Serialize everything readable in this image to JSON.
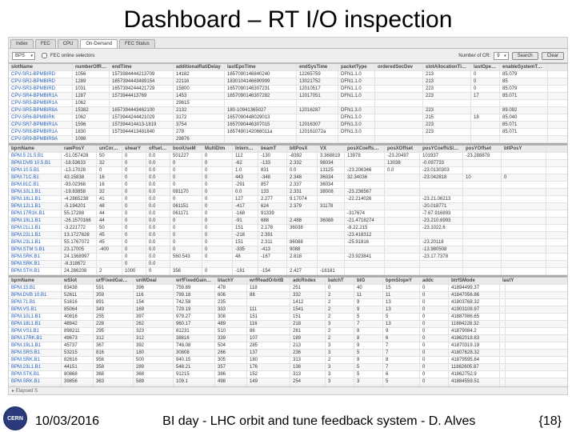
{
  "slide": {
    "title": "Dashboard – RT I/O inspection",
    "footer_date": "10/03/2016",
    "footer_text": "BI day - LHC orbit and tune feedback system - D. Alves",
    "footer_page": "{18}"
  },
  "tabs": [
    "Index",
    "FEC",
    "CPU",
    "On-Demand",
    "FEC Status"
  ],
  "active_tab": 3,
  "toolbar": {
    "dropdown": "BPS",
    "chk_label": "FEC online selectors",
    "counter_label": "Number of CR:",
    "counter_value": "9",
    "btn1": "Search",
    "btn2": "Clear"
  },
  "upper": {
    "cols": [
      "slotName",
      "numberOfReader",
      "endTime",
      "additionalRatiDelay",
      "lastEpoTime",
      "endSysTime",
      "packetType",
      "orderedSecDev",
      "slotAllocationTime",
      "lastOpenSourceFilters",
      "enableSystemToolkit"
    ],
    "rows": [
      [
        "CPV-SR1-BPMBIRD",
        "1056",
        "1573984444213709",
        "14182",
        "1657090146840240",
        "12265759",
        "DFN1.1.0",
        "",
        "213",
        "0",
        "85.079"
      ],
      [
        "CPV-SR2-BPMBIRD",
        "1289",
        "1657394443489154",
        "22116",
        "1830104146690999",
        "13021752",
        "DFN1.1.0",
        "",
        "213",
        "0",
        "85"
      ],
      [
        "CPV-SR3-BPMBIRD",
        "1031",
        "1657394244421729",
        "15800",
        "1657090146307231",
        "12010517",
        "DFN1.1.0",
        "",
        "223",
        "0",
        "85.079"
      ],
      [
        "CPV-SR4-BPMBIR1A",
        "1287",
        "1573944413769",
        "1453",
        "1657090146307282",
        "12017051",
        "DFN1.1.0",
        "",
        "223",
        "17",
        "85.071"
      ],
      [
        "CPV-SR5-BPMBIR1A",
        "1062",
        "",
        "29615",
        "",
        "",
        "",
        "",
        "",
        "",
        ""
      ],
      [
        "CPV-SR5-BPMBIR8A",
        "15382",
        "1657394443462100",
        "2132",
        "180-10941365027",
        "12016287",
        "DFN1.3.0",
        "",
        "223",
        "",
        "89.092"
      ],
      [
        "CPV-SR6-BPMBIRK",
        "1062",
        "1573944244421029",
        "3172",
        "1657090448029013",
        "",
        "DFN1.3.0",
        "",
        "215",
        "18",
        "85.040"
      ],
      [
        "CPV-SR7-BPMBIR1A",
        "1596",
        "157394414413-1819",
        "3754",
        "1657090446307015",
        "12016307",
        "DFN1.3.0",
        "",
        "223",
        "",
        "85.071"
      ],
      [
        "CPV-SR8-BPMBIR1A",
        "1830",
        "1573944413481840",
        "278",
        "1657490142066011a",
        "120161072a",
        "DFN1.3.0",
        "",
        "223",
        "",
        "85.071"
      ],
      [
        "CPV-SR9-BPMBIR9A",
        "1098",
        "",
        "29876",
        "",
        "",
        "",
        "",
        "",
        "",
        ""
      ]
    ]
  },
  "middle": {
    "cols": [
      "bpmName",
      "rawPosY",
      "unCorrVY",
      "shearY",
      "offsetUncorr",
      "boolUseM",
      "MultiDim",
      "InternalPos",
      "beamT",
      "bltPosX",
      "VX",
      "posXCoeffsSlope",
      "posXOffset",
      "posYCoeffsSlope",
      "posYOffset",
      "bltPosY"
    ],
    "rows": [
      [
        "BPM.5 21.5.B1",
        "-51.057428",
        "50",
        "0",
        "0.0",
        "501227",
        "0",
        "112",
        "-130",
        "-8392",
        "3.368819",
        "13978",
        "-23.20497",
        "101937",
        "-23.288878",
        ""
      ],
      [
        "BPM.DVB 10.5.B1",
        "-18.53633",
        "32",
        "0",
        "0.0",
        "0",
        "0",
        "-62",
        "-133",
        "2.332",
        "98034",
        "",
        "13038",
        "-0.097733",
        "",
        ""
      ],
      [
        "BPM.10.5.B1",
        "-13.17028",
        "0",
        "0",
        "0.0",
        "0",
        "0",
        "1.0",
        "831",
        "0.0",
        "13125",
        "-23.206346",
        "0.0",
        "-23.0130303",
        "",
        ""
      ],
      [
        "BPM.71C.B1",
        "43.15838",
        "16",
        "0",
        "0.0",
        "0",
        "0",
        "443",
        "-348",
        "2.348",
        "36034",
        "32.34036",
        "",
        "-23.042818",
        "10",
        "0"
      ],
      [
        "BPM.81C.B1",
        "-93.02368",
        "16",
        "0",
        "0.0",
        "0",
        "0",
        "-291",
        "857",
        "2.337",
        "36034",
        "",
        "",
        "",
        "",
        ""
      ],
      [
        "BPM.10L1.B1",
        "-19.83858",
        "32",
        "0",
        "0.0",
        "081170",
        "0",
        "0.0",
        "133",
        "2.331",
        "38008",
        "-23.236567",
        "",
        "",
        "",
        ""
      ],
      [
        "BPM.18L1.B1",
        "-4.2865238",
        "41",
        "0",
        "0.0",
        "0",
        "0",
        "127",
        "2.277",
        "9.17074",
        "",
        "-22.214026",
        "",
        "-23.21.06213",
        "",
        ""
      ],
      [
        "BPM.12L1.B1",
        "-5.194201",
        "48",
        "0",
        "0.0",
        "061151",
        "0",
        "-417",
        "624",
        "2.379",
        "31178",
        "",
        "",
        "-20.018771",
        "",
        ""
      ],
      [
        "BPM.17R1K.B1",
        "55.17288",
        "44",
        "0",
        "0.0",
        "061171",
        "0",
        "-168",
        "91339",
        "",
        "",
        "-317674",
        "",
        "-7.67.916893",
        "",
        ""
      ],
      [
        "BPM.19L1.B1",
        "-26.1570166",
        "44",
        "0",
        "0.0",
        "0",
        "0",
        "-91",
        "688",
        "2.488",
        "36088",
        "-21.4718274",
        "",
        "-23.210.6993",
        "",
        ""
      ],
      [
        "BPM.21L1.B1",
        "-3.221772",
        "50",
        "0",
        "0.0",
        "0",
        "0",
        "151",
        "2.178",
        "36038",
        "",
        "-8.22.215",
        "",
        "-23.1022.6",
        "",
        ""
      ],
      [
        "BPM.22L1.B1",
        "13.1727628",
        "45",
        "0",
        "0.0",
        "0",
        "0",
        "-218",
        "2.391",
        "",
        "",
        "-23.418312",
        "",
        "",
        "",
        ""
      ],
      [
        "BPM.23L1.B1",
        "55.1767072",
        "45",
        "0",
        "0.0",
        "0",
        "0",
        "151",
        "2.311",
        "86088",
        "",
        "-25.91816",
        "",
        "-23.20118",
        "",
        ""
      ],
      [
        "BPM.STM S.B1",
        "23.17005",
        "-400",
        "0",
        "0.0",
        "0",
        "0",
        "-335",
        "-413",
        "9088",
        "",
        "",
        "",
        "-13.980508",
        "",
        ""
      ],
      [
        "BPM.SRK.B1",
        "24.1368997",
        "",
        "0",
        "0.0",
        "560.543",
        "0",
        "48",
        "-167",
        "2.818",
        "",
        "-23.923841",
        "",
        "-23.17.7378",
        "",
        ""
      ],
      [
        "BPM.SRK.B1",
        "-8.318672",
        "",
        "0",
        "0.0",
        "",
        "",
        "",
        "",
        "",
        "",
        "",
        "",
        "",
        "",
        ""
      ],
      [
        "BPM.STH.B1",
        "24.286208",
        "2",
        "1000",
        "0",
        "356",
        "0",
        "-181",
        "-154",
        "2.427",
        "-16181",
        "",
        "",
        "",
        "",
        ""
      ]
    ]
  },
  "lower": {
    "cols": [
      "bpmName",
      "wSlot",
      "urfFixedGainFB",
      "unWDeal",
      "wrfFixedGainDb",
      "btachY",
      "wrfReadOrbitB",
      "adcRndex",
      "batchT",
      "btG",
      "bpmSlopeY",
      "addc",
      "btrfSMode",
      "lastY"
    ],
    "rows": [
      [
        "BPM.15.B1",
        "83438",
        "591",
        "396",
        "759.89",
        "478",
        "118",
        "251",
        "0",
        "40",
        "15",
        "0",
        "41894499.37",
        ""
      ],
      [
        "BPM.DVB 10.B1",
        "52611",
        "359",
        "116",
        "799.18",
        "606",
        "88",
        "332",
        "2",
        "11",
        "11",
        "0",
        "41847056.86",
        ""
      ],
      [
        "BPM.71.B1",
        "51616",
        "891",
        "154",
        "742.58",
        "235",
        "",
        "1412",
        "2",
        "9",
        "13",
        "0",
        "41803768.32",
        ""
      ],
      [
        "BPM.VS.B1",
        "85064",
        "349",
        "169",
        "729.19",
        "333",
        "111",
        "1541",
        "2",
        "9",
        "13",
        "0",
        "41903108.97",
        ""
      ],
      [
        "BPM.10L1.B1",
        "40816",
        "255",
        "397",
        "979.27",
        "308",
        "151",
        "151",
        "2",
        "5",
        "5",
        "0",
        "41887086.65",
        ""
      ],
      [
        "BPM.18L1.B1",
        "48942",
        "228",
        "262",
        "960.17",
        "489",
        "116",
        "218",
        "3",
        "7",
        "13",
        "0",
        "11884228.32",
        ""
      ],
      [
        "BPM.VS1.B1",
        "898211",
        "295",
        "323",
        "81231",
        "510",
        "86",
        "281",
        "2",
        "8",
        "9",
        "0",
        "41879084.2",
        ""
      ],
      [
        "BPM.17RK.B1",
        "49673",
        "312",
        "312",
        "38816",
        "339",
        "107",
        "189",
        "2",
        "8",
        "6",
        "0",
        "41862018.83",
        ""
      ],
      [
        "BPM.19L1.B1",
        "45737",
        "367",
        "392",
        "748.08",
        "504",
        "285",
        "213",
        "3",
        "9",
        "7",
        "0",
        "41870319.19",
        ""
      ],
      [
        "BPM.SRS.B1",
        "53215",
        "816",
        "180",
        "30808",
        "266",
        "137",
        "236",
        "3",
        "5",
        "7",
        "0",
        "41807628.32",
        ""
      ],
      [
        "BPM.SRK.B1",
        "82616",
        "956",
        "500",
        "940.15",
        "305",
        "180",
        "313",
        "2",
        "8",
        "8",
        "0",
        "41879595.84",
        ""
      ],
      [
        "BPM.23L1.B1",
        "44151",
        "358",
        "289",
        "548.21",
        "357",
        "176",
        "138",
        "3",
        "5",
        "7",
        "0",
        "11862605.87",
        ""
      ],
      [
        "BPM.STK.B1",
        "80868",
        "368",
        "368",
        "91215",
        "386",
        "152",
        "313",
        "3",
        "5",
        "6",
        "0",
        "41862752.9",
        ""
      ],
      [
        "BPM.SRK.B1",
        "39856",
        "363",
        "589",
        "109.1",
        "498",
        "149",
        "254",
        "3",
        "3",
        "5",
        "0",
        "41884559.51",
        ""
      ],
      [
        "BPM.SR3.B1",
        "69616",
        "1976",
        "198",
        "650.2",
        "324",
        "143",
        "386",
        "2",
        "5",
        "6",
        "0",
        "41895582.5",
        ""
      ],
      [
        "BPM.STH.B1",
        "83834",
        "273",
        "259",
        "849.14",
        "",
        "",
        "",
        "",
        "",
        "",
        "0",
        "41859578.86",
        ""
      ],
      [
        "BPM.28L1.B1",
        "39778",
        "570",
        "1",
        "299.1",
        "297",
        "",
        "281",
        "2",
        "3",
        "4",
        "0",
        "",
        ""
      ]
    ]
  },
  "statusbar": "Elapsed S"
}
